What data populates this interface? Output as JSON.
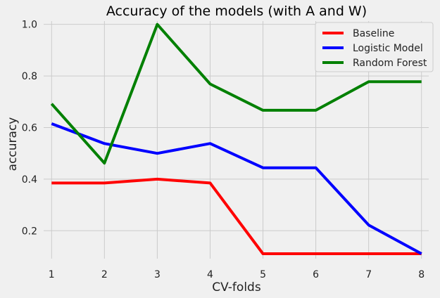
{
  "chart_data": {
    "type": "line",
    "title": "Accuracy of the models (with A and W)",
    "xlabel": "CV-folds",
    "ylabel": "accuracy",
    "x": [
      1,
      2,
      3,
      4,
      5,
      6,
      7,
      8
    ],
    "xlim": [
      0.65,
      8.35
    ],
    "ylim": [
      0.07,
      1.04
    ],
    "xticks": [
      "1",
      "2",
      "3",
      "4",
      "5",
      "6",
      "7",
      "8"
    ],
    "yticks": [
      "0.2",
      "0.4",
      "0.6",
      "0.8",
      "1.0"
    ],
    "grid": true,
    "legend_position": "top-right",
    "series": [
      {
        "name": "Baseline",
        "color": "#ff0000",
        "values": [
          0.385,
          0.385,
          0.4,
          0.385,
          0.111,
          0.111,
          0.111,
          0.111
        ]
      },
      {
        "name": "Logistic Model",
        "color": "#0000ff",
        "values": [
          0.615,
          0.538,
          0.5,
          0.538,
          0.444,
          0.444,
          0.222,
          0.111
        ]
      },
      {
        "name": "Random Forest",
        "color": "#008000",
        "values": [
          0.692,
          0.462,
          1.0,
          0.769,
          0.667,
          0.667,
          0.778,
          0.778
        ]
      }
    ]
  }
}
